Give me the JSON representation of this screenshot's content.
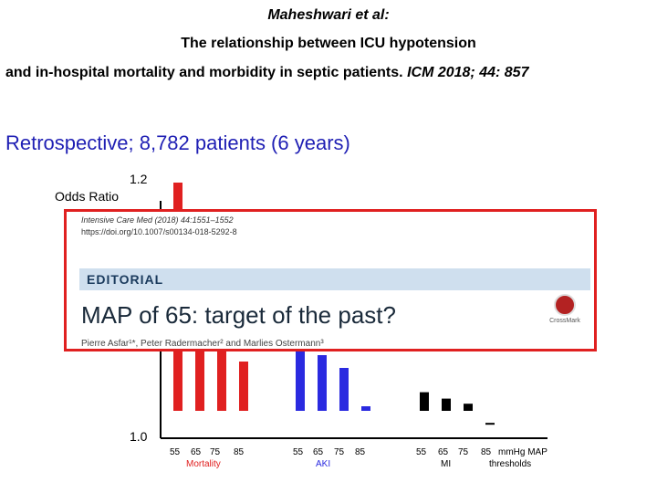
{
  "header": {
    "authors": "Maheshwari et al:",
    "title_line1": "The relationship between ICU hypotension",
    "title_line2": "and in-hospital mortality and morbidity in septic patients.",
    "journal": "ICM 2018; 44: 857"
  },
  "subtitle": "Retrospective; 8,782 patients (6 years)",
  "chart_data": {
    "type": "bar",
    "ylabel": "Odds Ratio",
    "ylim": [
      1.0,
      1.2
    ],
    "y_ticks": [
      "1.2",
      "1.0"
    ],
    "x_tick_labels": [
      "55",
      "65",
      "75",
      "85",
      "55",
      "65",
      "75",
      "85",
      "55",
      "65",
      "75",
      "85"
    ],
    "x_unit_label": "mmHg MAP",
    "x_unit_label2": "thresholds",
    "groups": [
      {
        "name": "Mortality",
        "color": "#e02020",
        "values": [
          1.2,
          1.15,
          1.11,
          1.06
        ]
      },
      {
        "name": "AKI",
        "color": "#2a2ae0",
        "values": [
          1.09,
          1.065,
          1.055,
          1.025
        ]
      },
      {
        "name": "MI",
        "color": "#000000",
        "values": [
          1.036,
          1.031,
          1.027,
          1.012
        ]
      }
    ],
    "grid": false
  },
  "overlay": {
    "citation": "Intensive Care Med (2018) 44:1551–1552",
    "doi": "https://doi.org/10.1007/s00134-018-5292-8",
    "section": "EDITORIAL",
    "title": "MAP of 65: target of the past?",
    "authors": "Pierre Asfar¹*, Peter Radermacher² and Marlies Ostermann³",
    "badge": "CrossMark"
  }
}
